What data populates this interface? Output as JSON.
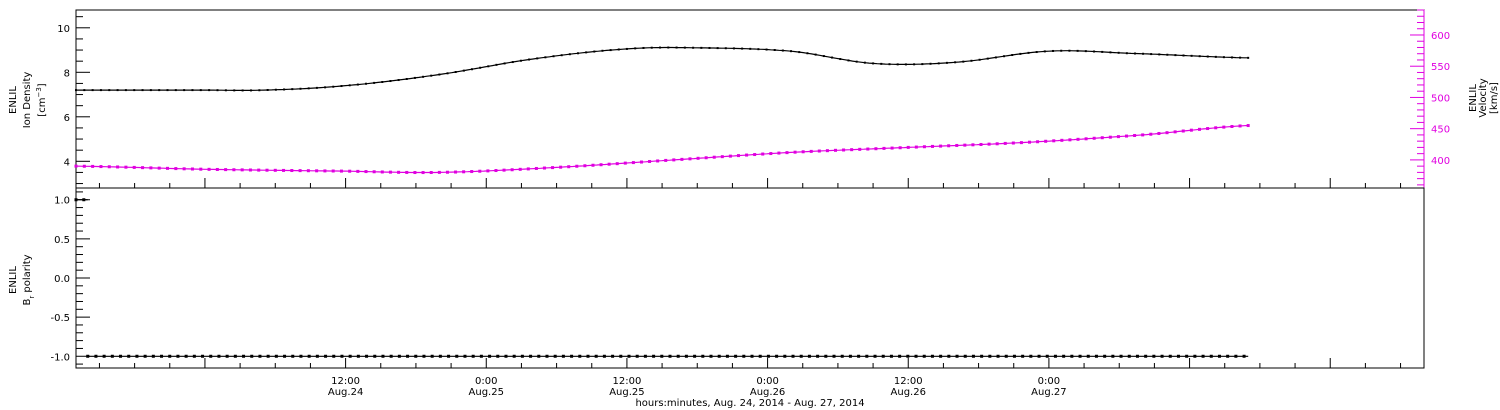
{
  "colors": {
    "density": "#000000",
    "velocity": "#e000e0",
    "polarity": "#000000",
    "frame": "#000000"
  },
  "xaxis": {
    "title": "hours:minutes, Aug. 24, 2014 - Aug. 27, 2014",
    "range_hours": [
      -11,
      104
    ],
    "ticks": [
      {
        "hour": 12,
        "time": "12:00",
        "date": "Aug.24"
      },
      {
        "hour": 24,
        "time": "0:00",
        "date": "Aug.25"
      },
      {
        "hour": 36,
        "time": "12:00",
        "date": "Aug.25"
      },
      {
        "hour": 48,
        "time": "0:00",
        "date": "Aug.26"
      },
      {
        "hour": 60,
        "time": "12:00",
        "date": "Aug.26"
      },
      {
        "hour": 72,
        "time": "0:00",
        "date": "Aug.27"
      }
    ]
  },
  "chart_data": [
    {
      "type": "line",
      "panel": "top",
      "ylabel": {
        "line1": "ENLIL",
        "line2": "Ion Density",
        "unit_base": "[cm",
        "unit_exp": "−3",
        "unit_close": "]"
      },
      "ylim": [
        2.8,
        10.8
      ],
      "yticks": [
        4,
        6,
        8,
        10
      ],
      "y2label": {
        "line1": "ENLIL",
        "line2": "Velocity",
        "unit": "[km/s]"
      },
      "y2lim": [
        355,
        640
      ],
      "y2ticks": [
        400,
        450,
        500,
        550,
        600
      ],
      "series": [
        {
          "axis": "left",
          "color": "#000000",
          "x": [
            -11,
            0,
            5,
            12,
            20,
            28,
            36,
            42,
            50,
            57,
            64,
            72,
            79,
            89
          ],
          "y": [
            7.2,
            7.2,
            7.2,
            7.4,
            7.9,
            8.6,
            9.05,
            9.1,
            8.95,
            8.4,
            8.45,
            8.95,
            8.85,
            8.65
          ]
        },
        {
          "axis": "right",
          "color": "#e000e0",
          "x": [
            -11,
            0,
            12,
            20,
            30,
            40,
            50,
            60,
            70,
            80,
            89
          ],
          "y": [
            390,
            385,
            382,
            380,
            388,
            400,
            412,
            420,
            428,
            440,
            455
          ]
        }
      ]
    },
    {
      "type": "line",
      "panel": "bottom",
      "ylabel": {
        "line1": "ENLIL",
        "line2": "B",
        "sub": "r",
        "line2_rest": " polarity"
      },
      "ylim": [
        -1.15,
        1.15
      ],
      "yticks": [
        -1.0,
        -0.5,
        0.0,
        0.5,
        1.0
      ],
      "series": [
        {
          "axis": "left",
          "color": "#000000",
          "x": [
            -11,
            -10
          ],
          "y": [
            1.0,
            1.0
          ]
        },
        {
          "axis": "left",
          "color": "#000000",
          "x": [
            -10,
            89
          ],
          "y": [
            -1.0,
            -1.0
          ]
        }
      ]
    }
  ]
}
